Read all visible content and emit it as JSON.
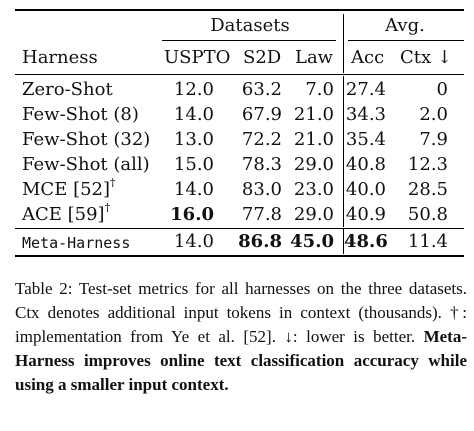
{
  "table": {
    "group_headers": {
      "datasets": "Datasets",
      "avg": "Avg."
    },
    "columns": {
      "harness": "Harness",
      "uspto": "USPTO",
      "s2d": "S2D",
      "law": "Law",
      "acc": "Acc",
      "ctx": "Ctx ↓"
    },
    "rows": [
      {
        "name": "Zero-Shot",
        "sup": "",
        "uspto": "12.0",
        "s2d": "63.2",
        "law": "7.0",
        "acc": "27.4",
        "ctx": "0"
      },
      {
        "name": "Few-Shot (8)",
        "sup": "",
        "uspto": "14.0",
        "s2d": "67.9",
        "law": "21.0",
        "acc": "34.3",
        "ctx": "2.0"
      },
      {
        "name": "Few-Shot (32)",
        "sup": "",
        "uspto": "13.0",
        "s2d": "72.2",
        "law": "21.0",
        "acc": "35.4",
        "ctx": "7.9"
      },
      {
        "name": "Few-Shot (all)",
        "sup": "",
        "uspto": "15.0",
        "s2d": "78.3",
        "law": "29.0",
        "acc": "40.8",
        "ctx": "12.3"
      },
      {
        "name": "MCE [52]",
        "sup": "†",
        "uspto": "14.0",
        "s2d": "83.0",
        "law": "23.0",
        "acc": "40.0",
        "ctx": "28.5"
      },
      {
        "name": "ACE [59]",
        "sup": "†",
        "uspto": "16.0",
        "s2d": "77.8",
        "law": "29.0",
        "acc": "40.9",
        "ctx": "50.8"
      }
    ],
    "final_row": {
      "name": "Meta-Harness",
      "uspto": "14.0",
      "s2d": "86.8",
      "law": "45.0",
      "acc": "48.6",
      "ctx": "11.4"
    }
  },
  "caption": {
    "label": "Table 2:",
    "text": "Test-set metrics for all harnesses on the three datasets. Ctx denotes additional input tokens in context (thousands). †: implementation from Ye et al. [52]. ↓: lower is better.",
    "bold_text": "Meta-Harness improves online text classification accuracy while using a smaller input context."
  }
}
